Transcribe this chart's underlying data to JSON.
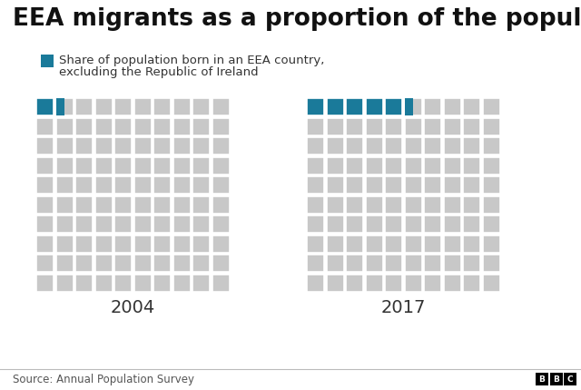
{
  "title": "EEA migrants as a proportion of the population",
  "legend_label_line1": "Share of population born in an EEA country,",
  "legend_label_line2": "excluding the Republic of Ireland",
  "source": "Source: Annual Population Survey",
  "bbc_label": "BBC",
  "years": [
    "2004",
    "2017"
  ],
  "grid_cols": 10,
  "grid_rows": 10,
  "highlighted_2004": 1.5,
  "highlighted_2017": 5.5,
  "teal_color": "#1a7a9a",
  "gray_color": "#c8c8c8",
  "bg_color": "#ffffff",
  "title_fontsize": 19,
  "label_fontsize": 9.5,
  "year_fontsize": 14,
  "source_fontsize": 8.5
}
